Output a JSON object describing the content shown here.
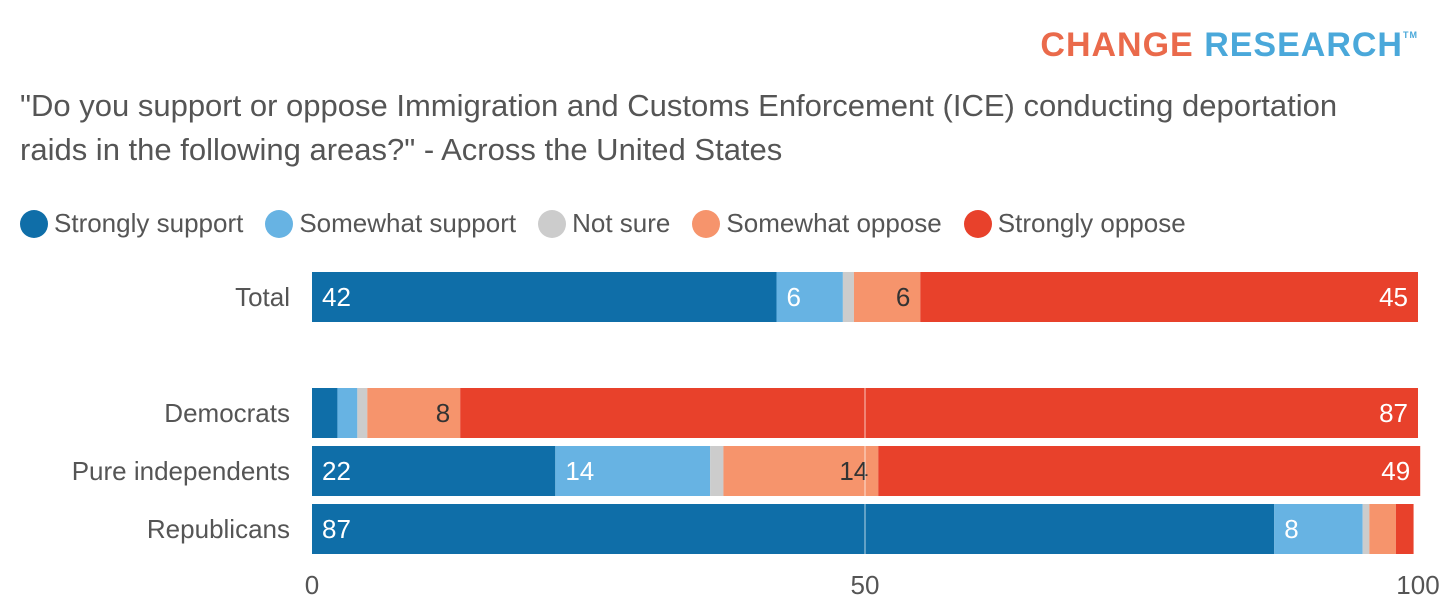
{
  "brand": {
    "name_part1": "CHANGE",
    "name_part2": "RESEARCH",
    "trademark": "TM"
  },
  "title": "\"Do you support or oppose Immigration and Customs Enforcement (ICE) conducting deportation raids in the following areas?\" - Across the United States",
  "colors": {
    "strongly_support": "#0f6ea8",
    "somewhat_support": "#67b3e3",
    "not_sure": "#cccccc",
    "somewhat_oppose": "#f6946c",
    "strongly_oppose": "#e8412b",
    "gridline": "#ffffff",
    "label_light": "#ffffff",
    "label_dark": "#333333"
  },
  "chart_data": {
    "type": "bar",
    "orientation": "horizontal",
    "stacked": true,
    "title": "\"Do you support or oppose Immigration and Customs Enforcement (ICE) conducting deportation raids in the following areas?\" - Across the United States",
    "categories": [
      "Total",
      "Democrats",
      "Pure independents",
      "Republicans"
    ],
    "series": [
      {
        "name": "Strongly support",
        "values": [
          42,
          2.3,
          22,
          87
        ],
        "labels": [
          "42",
          "",
          "22",
          "87"
        ]
      },
      {
        "name": "Somewhat support",
        "values": [
          6,
          1.8,
          14,
          8
        ],
        "labels": [
          "6",
          "",
          "14",
          "8"
        ]
      },
      {
        "name": "Not sure",
        "values": [
          1,
          0.9,
          1.2,
          0.6
        ],
        "labels": [
          "",
          "",
          "",
          ""
        ]
      },
      {
        "name": "Somewhat oppose",
        "values": [
          6,
          8.4,
          14,
          2.4
        ],
        "labels": [
          "6",
          "8",
          "14",
          ""
        ]
      },
      {
        "name": "Strongly oppose",
        "values": [
          45,
          86.6,
          49,
          1.6
        ],
        "labels": [
          "45",
          "87",
          "49",
          ""
        ]
      }
    ],
    "xlim": [
      0,
      100
    ],
    "xticks": [
      "0",
      "50",
      "100"
    ],
    "legend_position": "top-left",
    "grid": true
  }
}
